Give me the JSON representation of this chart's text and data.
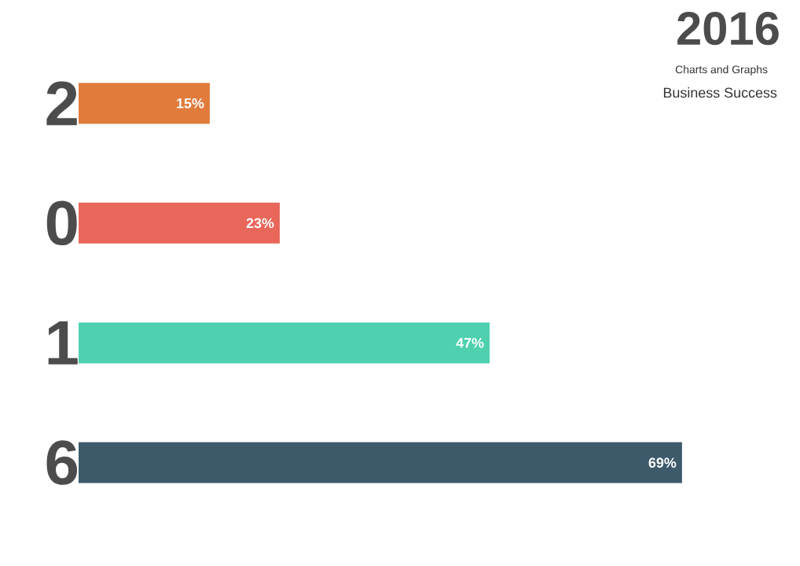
{
  "chart_data": {
    "type": "bar",
    "orientation": "horizontal",
    "title": "2016",
    "subtitle": "Charts and Graphs",
    "annotations": [
      "Business Success"
    ],
    "categories": [
      "2",
      "0",
      "1",
      "6"
    ],
    "values": [
      15,
      23,
      47,
      69
    ],
    "value_labels": [
      "15%",
      "23%",
      "47%",
      "69%"
    ],
    "colors": [
      "#e07b3c",
      "#e8675a",
      "#4fd1b0",
      "#3d5a6b"
    ]
  }
}
